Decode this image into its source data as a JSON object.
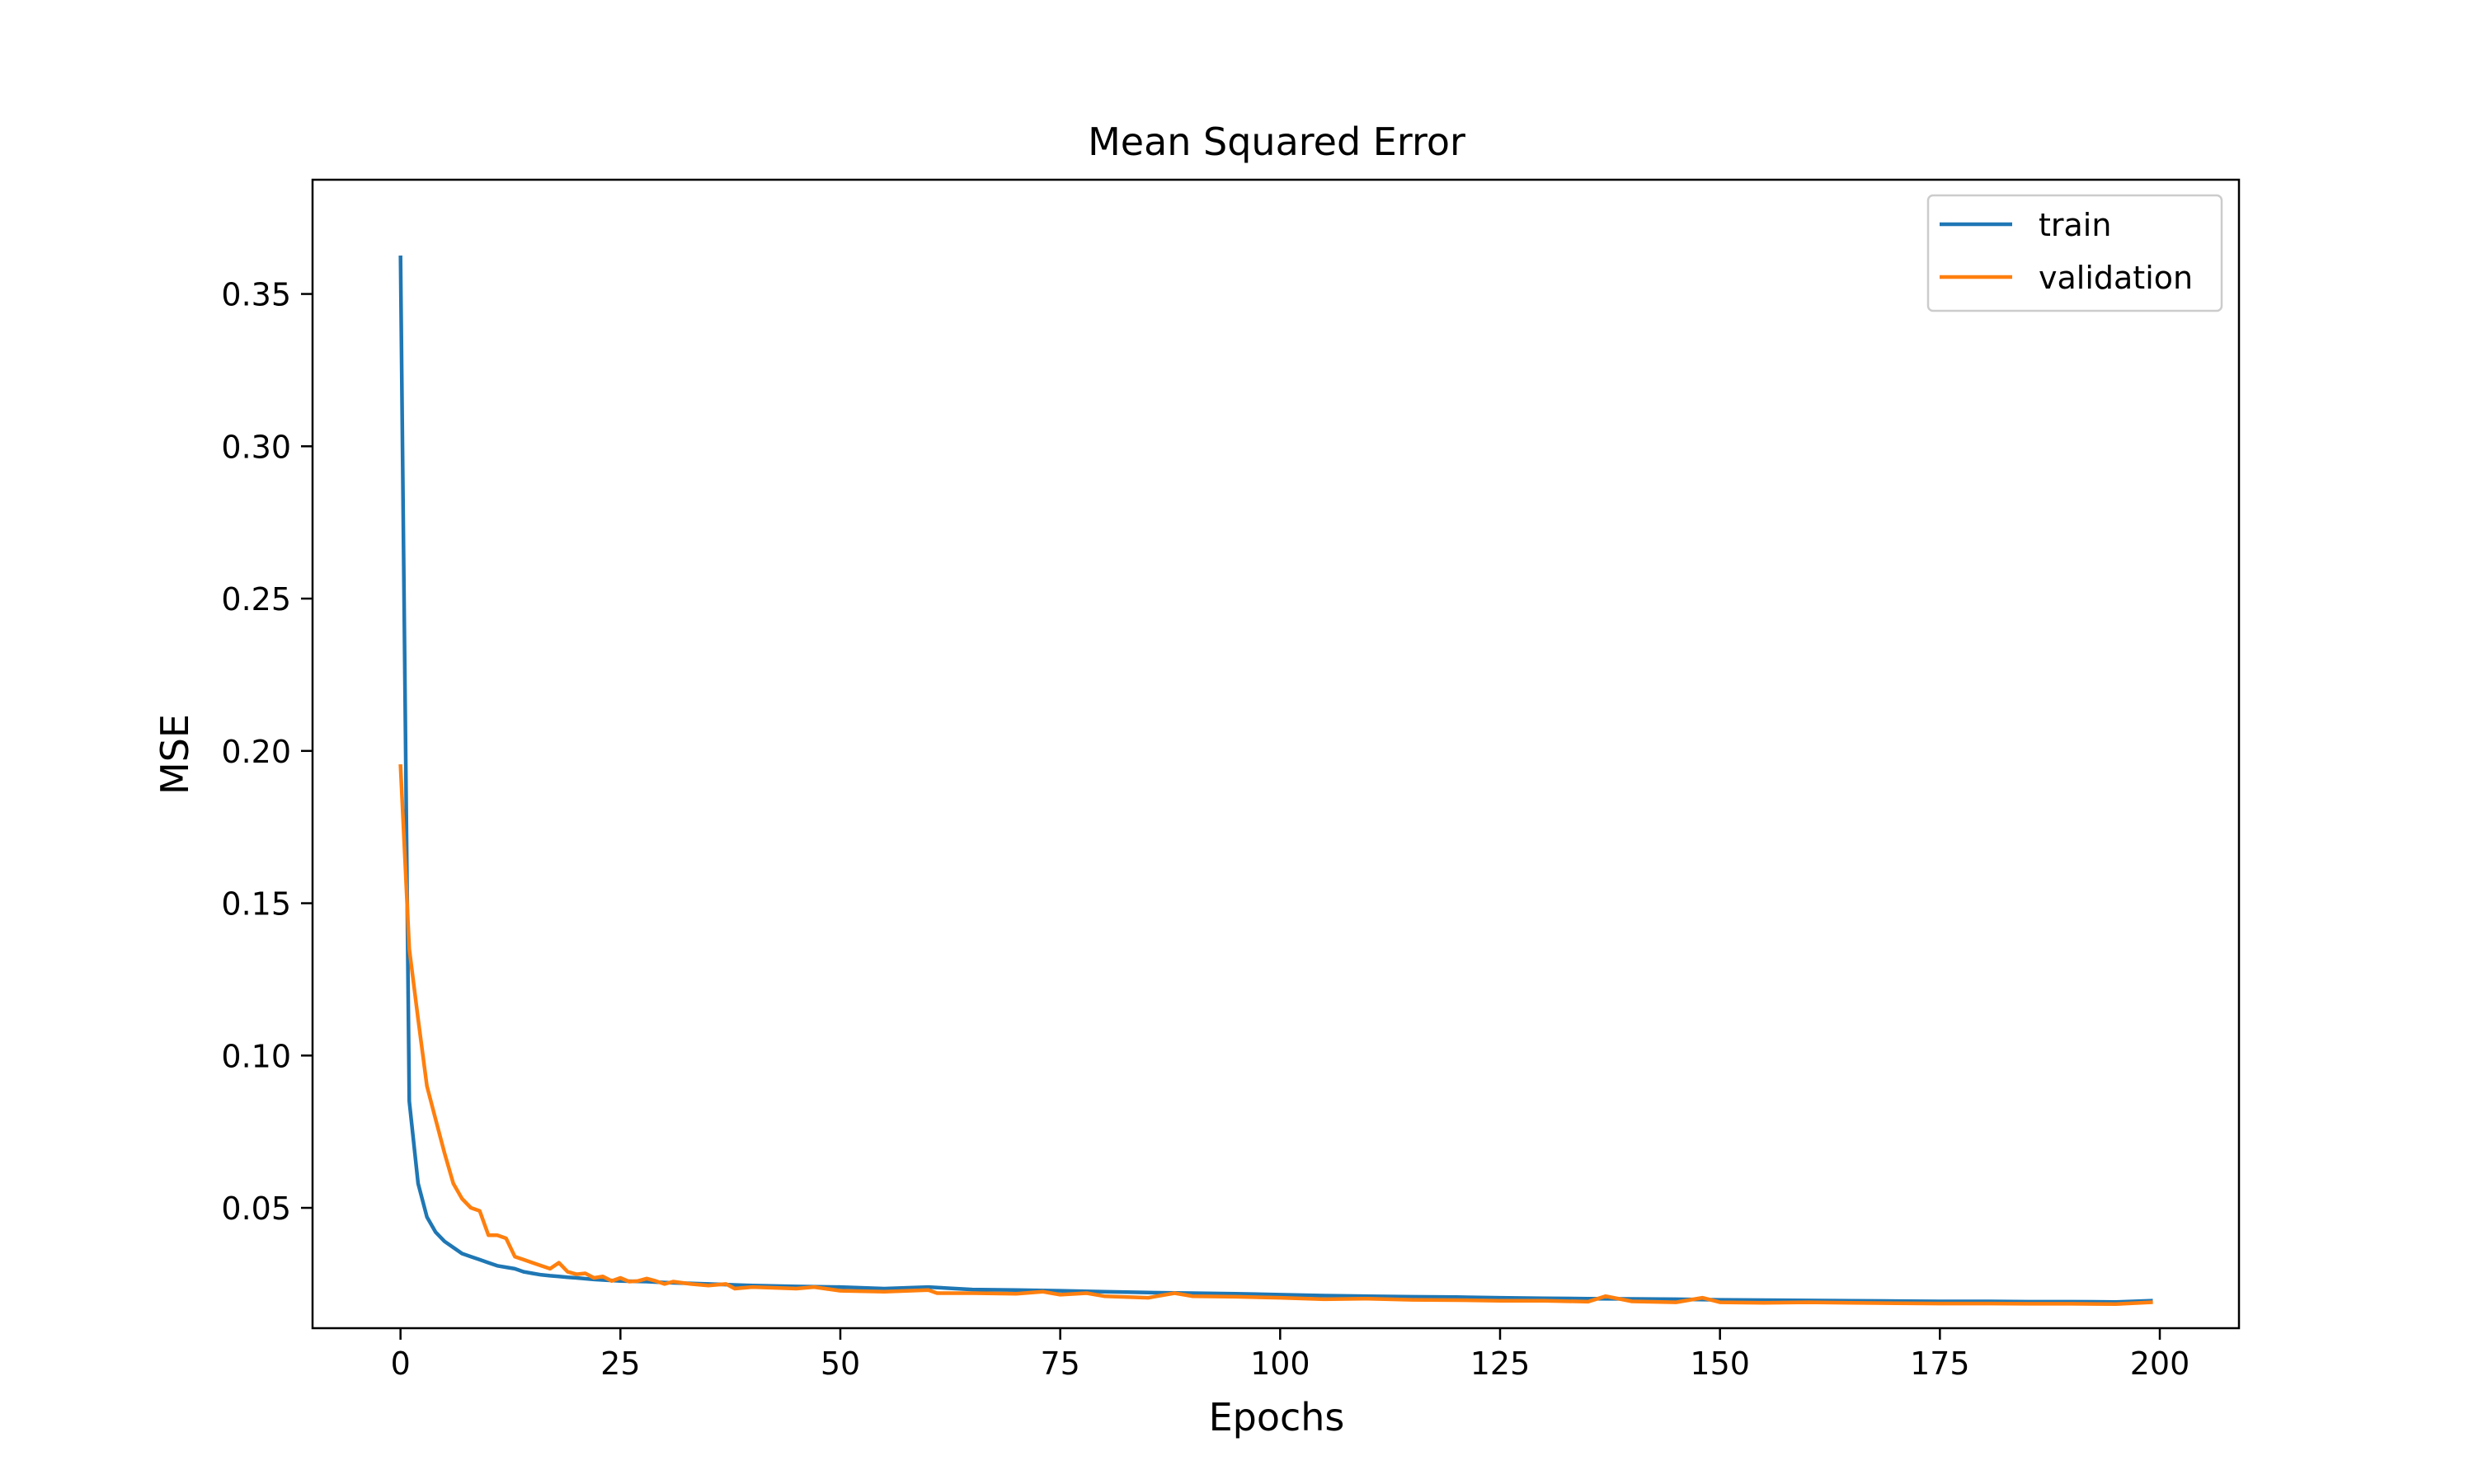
{
  "chart_data": {
    "type": "line",
    "title": "Mean Squared Error",
    "xlabel": "Epochs",
    "ylabel": "MSE",
    "xlim": [
      -10,
      209
    ],
    "ylim": [
      0.0105,
      0.3875
    ],
    "xticks": [
      0,
      25,
      50,
      75,
      100,
      125,
      150,
      175,
      200
    ],
    "yticks": [
      0.05,
      0.1,
      0.15,
      0.2,
      0.25,
      0.3,
      0.35
    ],
    "ytick_labels": [
      "0.05",
      "0.10",
      "0.15",
      "0.20",
      "0.25",
      "0.30",
      "0.35"
    ],
    "grid": false,
    "legend": {
      "position": "top-right"
    },
    "series": [
      {
        "name": "train",
        "color": "#1f77b4",
        "points": [
          [
            0,
            0.362
          ],
          [
            1,
            0.085
          ],
          [
            2,
            0.058
          ],
          [
            3,
            0.047
          ],
          [
            4,
            0.042
          ],
          [
            5,
            0.039
          ],
          [
            6,
            0.037
          ],
          [
            7,
            0.035
          ],
          [
            8,
            0.034
          ],
          [
            9,
            0.033
          ],
          [
            10,
            0.032
          ],
          [
            11,
            0.031
          ],
          [
            12,
            0.0305
          ],
          [
            13,
            0.03
          ],
          [
            14,
            0.029
          ],
          [
            15,
            0.0285
          ],
          [
            16,
            0.028
          ],
          [
            17,
            0.0277
          ],
          [
            18,
            0.0275
          ],
          [
            19,
            0.0272
          ],
          [
            20,
            0.027
          ],
          [
            22,
            0.0265
          ],
          [
            25,
            0.026
          ],
          [
            28,
            0.0258
          ],
          [
            30,
            0.0255
          ],
          [
            35,
            0.025
          ],
          [
            40,
            0.0245
          ],
          [
            45,
            0.0242
          ],
          [
            50,
            0.024
          ],
          [
            55,
            0.0235
          ],
          [
            60,
            0.024
          ],
          [
            65,
            0.0232
          ],
          [
            70,
            0.023
          ],
          [
            75,
            0.0228
          ],
          [
            80,
            0.0225
          ],
          [
            85,
            0.0222
          ],
          [
            90,
            0.022
          ],
          [
            95,
            0.0218
          ],
          [
            100,
            0.0215
          ],
          [
            105,
            0.0212
          ],
          [
            110,
            0.021
          ],
          [
            115,
            0.0208
          ],
          [
            120,
            0.0207
          ],
          [
            125,
            0.0205
          ],
          [
            130,
            0.0203
          ],
          [
            135,
            0.0202
          ],
          [
            140,
            0.0201
          ],
          [
            145,
            0.02
          ],
          [
            150,
            0.0198
          ],
          [
            155,
            0.0197
          ],
          [
            160,
            0.0196
          ],
          [
            165,
            0.0195
          ],
          [
            170,
            0.0194
          ],
          [
            175,
            0.0193
          ],
          [
            180,
            0.0193
          ],
          [
            185,
            0.0192
          ],
          [
            190,
            0.0192
          ],
          [
            195,
            0.0191
          ],
          [
            199,
            0.0195
          ]
        ]
      },
      {
        "name": "validation",
        "color": "#ff7f0e",
        "points": [
          [
            0,
            0.195
          ],
          [
            1,
            0.135
          ],
          [
            2,
            0.112
          ],
          [
            3,
            0.09
          ],
          [
            4,
            0.079
          ],
          [
            5,
            0.068
          ],
          [
            6,
            0.058
          ],
          [
            7,
            0.053
          ],
          [
            8,
            0.05
          ],
          [
            9,
            0.049
          ],
          [
            10,
            0.041
          ],
          [
            11,
            0.041
          ],
          [
            12,
            0.04
          ],
          [
            13,
            0.034
          ],
          [
            14,
            0.033
          ],
          [
            15,
            0.032
          ],
          [
            16,
            0.031
          ],
          [
            17,
            0.03
          ],
          [
            18,
            0.032
          ],
          [
            19,
            0.029
          ],
          [
            20,
            0.0282
          ],
          [
            21,
            0.0285
          ],
          [
            22,
            0.027
          ],
          [
            23,
            0.0275
          ],
          [
            24,
            0.026
          ],
          [
            25,
            0.027
          ],
          [
            26,
            0.0258
          ],
          [
            27,
            0.026
          ],
          [
            28,
            0.0268
          ],
          [
            29,
            0.026
          ],
          [
            30,
            0.025
          ],
          [
            31,
            0.0258
          ],
          [
            33,
            0.025
          ],
          [
            35,
            0.0245
          ],
          [
            37,
            0.025
          ],
          [
            38,
            0.0235
          ],
          [
            40,
            0.024
          ],
          [
            45,
            0.0235
          ],
          [
            47,
            0.024
          ],
          [
            50,
            0.0228
          ],
          [
            55,
            0.0225
          ],
          [
            60,
            0.023
          ],
          [
            61,
            0.022
          ],
          [
            65,
            0.022
          ],
          [
            70,
            0.0218
          ],
          [
            73,
            0.0225
          ],
          [
            75,
            0.0215
          ],
          [
            78,
            0.022
          ],
          [
            80,
            0.021
          ],
          [
            85,
            0.0205
          ],
          [
            88,
            0.022
          ],
          [
            90,
            0.021
          ],
          [
            95,
            0.0208
          ],
          [
            100,
            0.0205
          ],
          [
            105,
            0.02
          ],
          [
            110,
            0.0202
          ],
          [
            115,
            0.0198
          ],
          [
            120,
            0.0197
          ],
          [
            125,
            0.0195
          ],
          [
            130,
            0.0195
          ],
          [
            135,
            0.0192
          ],
          [
            137,
            0.021
          ],
          [
            140,
            0.0193
          ],
          [
            145,
            0.019
          ],
          [
            148,
            0.0205
          ],
          [
            150,
            0.019
          ],
          [
            155,
            0.0188
          ],
          [
            160,
            0.019
          ],
          [
            165,
            0.0188
          ],
          [
            170,
            0.0187
          ],
          [
            175,
            0.0186
          ],
          [
            180,
            0.0186
          ],
          [
            185,
            0.0185
          ],
          [
            190,
            0.0185
          ],
          [
            195,
            0.0184
          ],
          [
            199,
            0.019
          ]
        ]
      }
    ]
  }
}
